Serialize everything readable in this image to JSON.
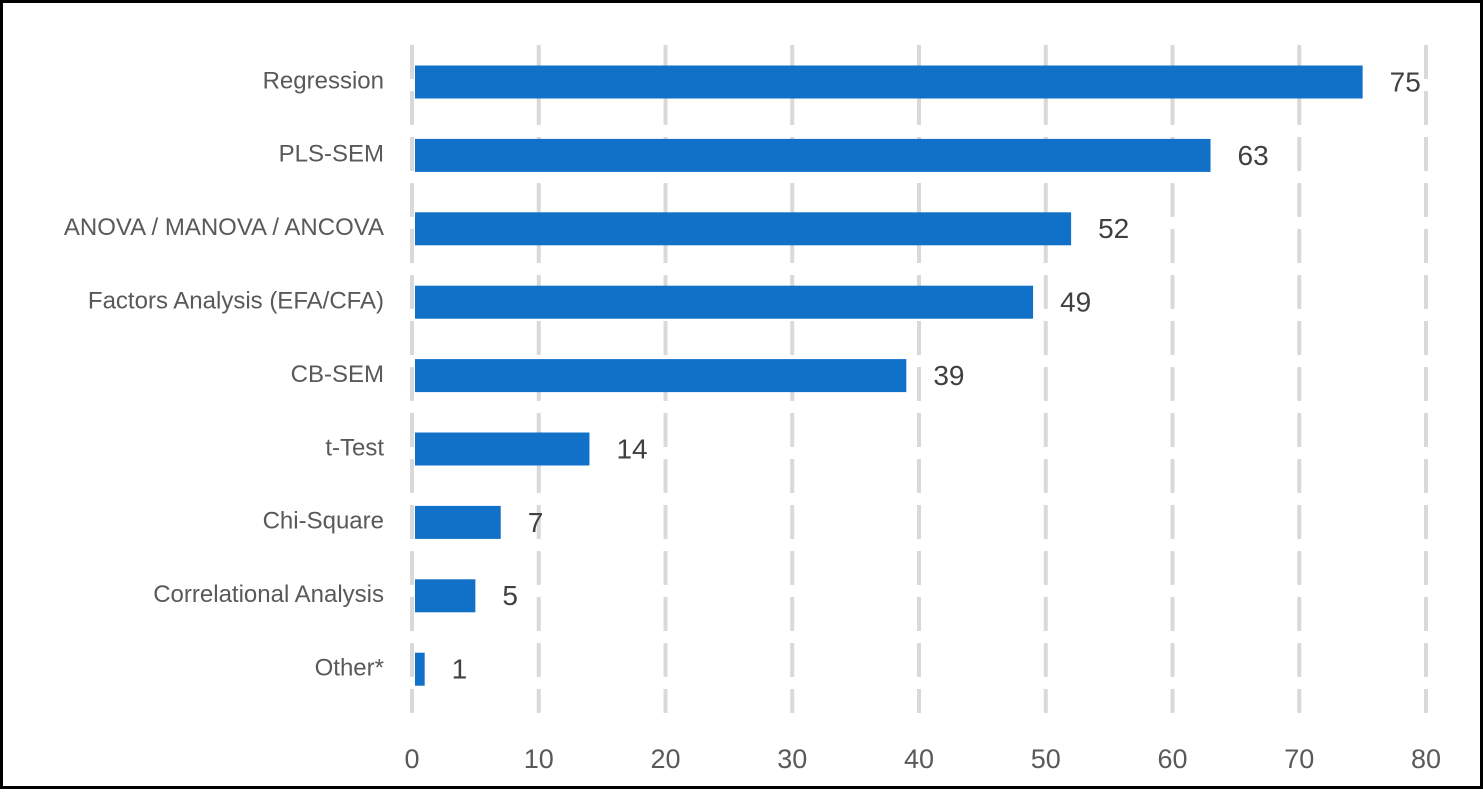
{
  "chart_data": {
    "type": "bar",
    "orientation": "horizontal",
    "title": "",
    "xlabel": "",
    "ylabel": "",
    "categories": [
      "Regression",
      "PLS-SEM",
      "ANOVA / MANOVA / ANCOVA",
      "Factors Analysis (EFA/CFA)",
      "CB-SEM",
      "t-Test",
      "Chi-Square",
      "Correlational Analysis",
      "Other*"
    ],
    "values": [
      75,
      63,
      52,
      49,
      39,
      14,
      7,
      5,
      1
    ],
    "value_labels": [
      "75",
      "63",
      "52",
      "49",
      "39",
      "14",
      "7",
      "5",
      "1"
    ],
    "xlim": [
      0,
      80
    ],
    "xticks": [
      0,
      10,
      20,
      30,
      40,
      50,
      60,
      70,
      80
    ],
    "xtick_labels": [
      "0",
      "10",
      "20",
      "30",
      "40",
      "50",
      "60",
      "70",
      "80"
    ],
    "grid": "vertical dashed",
    "legend": "none",
    "colors": {
      "bar": "#1170C8",
      "gridline": "#D9D9D9",
      "category_text": "#595959",
      "value_text": "#404040",
      "tick_text": "#595959"
    }
  }
}
